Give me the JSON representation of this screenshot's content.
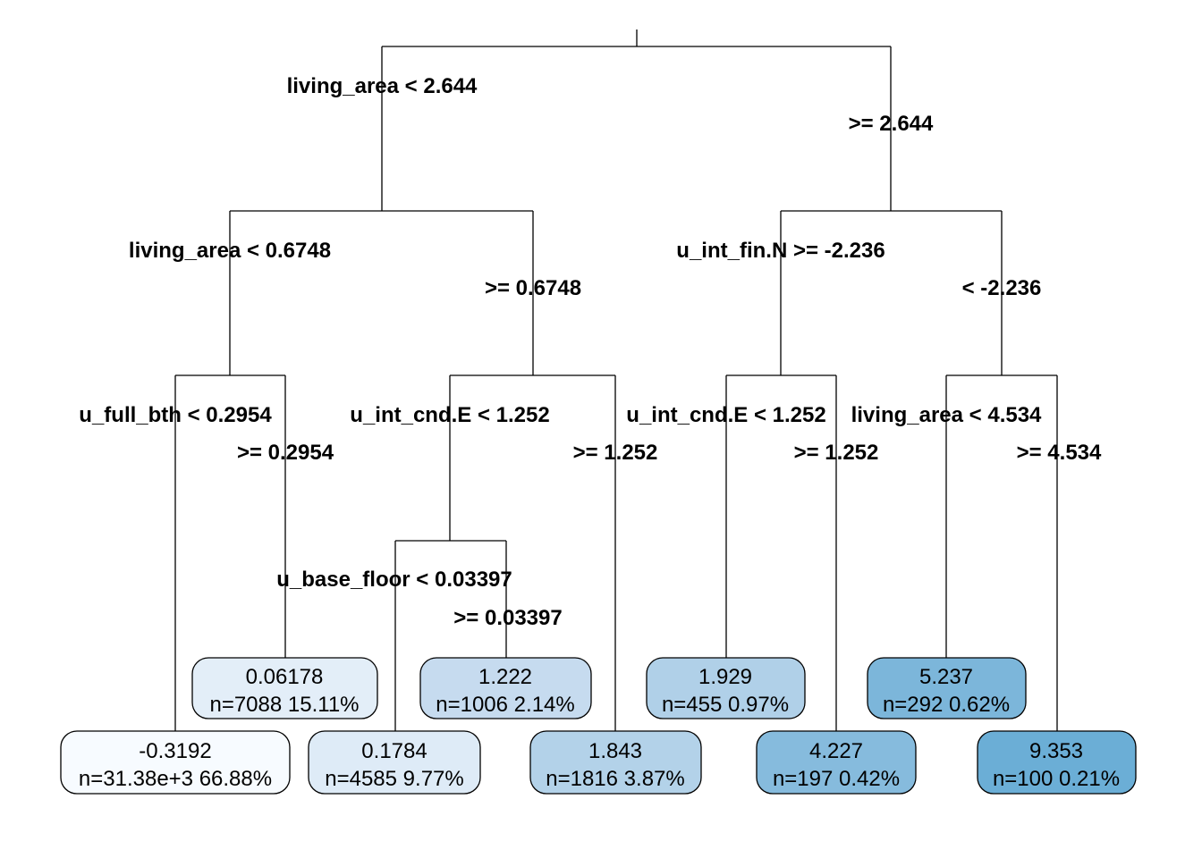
{
  "splits": {
    "root": {
      "left": "living_area < 2.644",
      "right": ">= 2.644"
    },
    "l": {
      "left": "living_area < 0.6748",
      "right": ">= 0.6748"
    },
    "r": {
      "left": "u_int_fin.N >= -2.236",
      "right": "< -2.236"
    },
    "ll": {
      "left": "u_full_bth < 0.2954",
      "right": ">= 0.2954"
    },
    "lr": {
      "left": "u_int_cnd.E < 1.252",
      "right": ">= 1.252"
    },
    "rl": {
      "left": "u_int_cnd.E < 1.252",
      "right": ">= 1.252"
    },
    "rr": {
      "left": "living_area < 4.534",
      "right": ">= 4.534"
    },
    "lrl": {
      "left": "u_base_floor < 0.03397",
      "right": ">= 0.03397"
    }
  },
  "leaves": {
    "l1": {
      "value": "-0.3192",
      "stats": "n=31.38e+3  66.88%",
      "color": "#f7fbff"
    },
    "l2": {
      "value": "0.06178",
      "stats": "n=7088  15.11%",
      "color": "#e3eef8"
    },
    "l3": {
      "value": "0.1784",
      "stats": "n=4585  9.77%",
      "color": "#deebf7"
    },
    "l4": {
      "value": "1.222",
      "stats": "n=1006  2.14%",
      "color": "#c6dbef"
    },
    "l5": {
      "value": "1.843",
      "stats": "n=1816  3.87%",
      "color": "#b3d2e9"
    },
    "l6": {
      "value": "1.929",
      "stats": "n=455  0.97%",
      "color": "#b0d0e8"
    },
    "l7": {
      "value": "4.227",
      "stats": "n=197  0.42%",
      "color": "#86bbdd"
    },
    "l8": {
      "value": "5.237",
      "stats": "n=292  0.62%",
      "color": "#7cb6da"
    },
    "l9": {
      "value": "9.353",
      "stats": "n=100  0.21%",
      "color": "#6baed6"
    }
  }
}
